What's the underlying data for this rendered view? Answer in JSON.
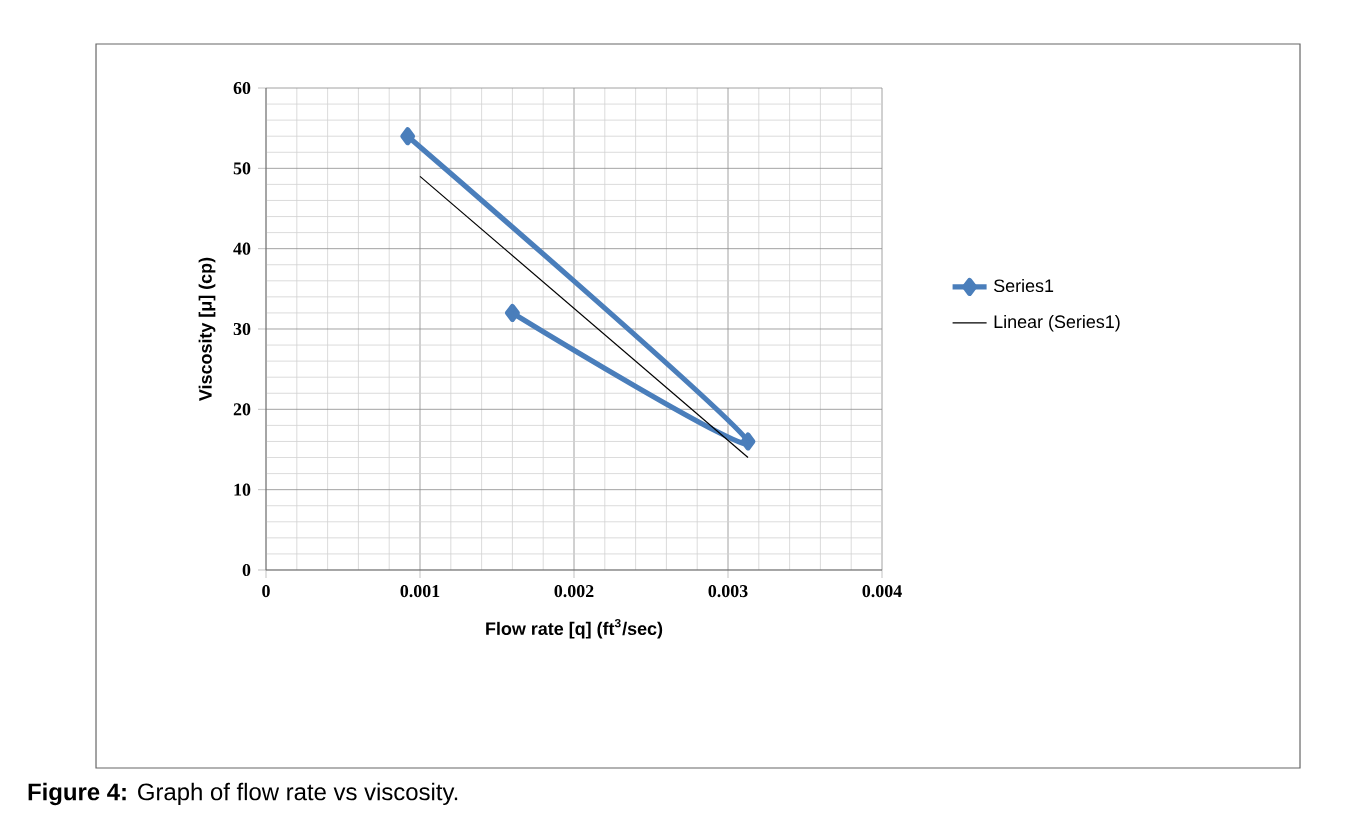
{
  "chart_data": {
    "type": "line",
    "xlabel": "Flow rate [q] (ft$^{3}$/sec)",
    "ylabel": "Viscosity [μ] (cp)",
    "annotations": [
      "**Figure 4:** Graph of flow rate vs viscosity."
    ],
    "series": [
      {
        "name": "Series1",
        "color": "#4a7ebb",
        "x": [
          0.00092,
          0.00313,
          0.0016
        ],
        "values": [
          54,
          16,
          32
        ],
        "marker": "diamond"
      },
      {
        "name": "Linear (Series1)",
        "type": "line",
        "color": "#000000",
        "x": [
          0.001,
          0.00313
        ],
        "values": [
          49,
          14
        ],
        "marker": "none"
      }
    ],
    "xlim": [
      0,
      0.004
    ],
    "ylim": [
      0,
      60
    ],
    "xticks": [
      0,
      0.001,
      0.002,
      0.003,
      0.004
    ],
    "yticks": [
      0,
      10,
      20,
      30,
      40,
      50,
      60
    ],
    "grid": true,
    "legend": "right",
    "line_style": "solid"
  }
}
